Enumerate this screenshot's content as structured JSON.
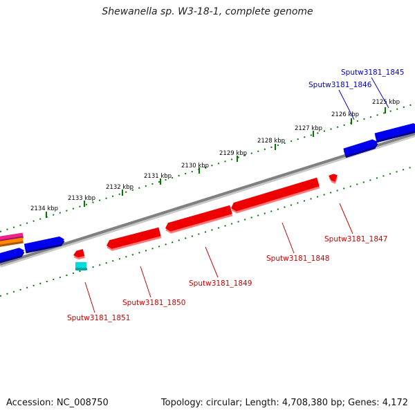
{
  "title": "Shewanella sp. W3-18-1, complete genome",
  "footer": {
    "accession": "Accession: NC_008750",
    "summary": "Topology: circular; Length: 4,708,380 bp; Genes: 4,172"
  },
  "colors": {
    "forward_gene": "#0000ee",
    "reverse_gene": "#ee0000",
    "backbone": "#808080",
    "tick": "#007700",
    "forward_label": "#0000cc",
    "reverse_label": "#cc0000"
  },
  "scale_labels": [
    "2125 kbp",
    "2126 kbp",
    "2127 kbp",
    "2128 kbp",
    "2129 kbp",
    "2130 kbp",
    "2131 kbp",
    "2132 kbp",
    "2133 kbp",
    "2134 kbp"
  ],
  "forward_genes": [
    {
      "label": "Sputw3181_1845"
    },
    {
      "label": "Sputw3181_1846"
    }
  ],
  "reverse_genes": [
    {
      "label": "Sputw3181_1847"
    },
    {
      "label": "Sputw3181_1848"
    },
    {
      "label": "Sputw3181_1849"
    },
    {
      "label": "Sputw3181_1850"
    },
    {
      "label": "Sputw3181_1851"
    }
  ]
}
